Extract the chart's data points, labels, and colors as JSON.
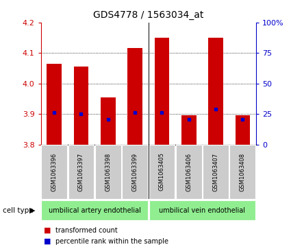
{
  "title": "GDS4778 / 1563034_at",
  "samples": [
    "GSM1063396",
    "GSM1063397",
    "GSM1063398",
    "GSM1063399",
    "GSM1063405",
    "GSM1063406",
    "GSM1063407",
    "GSM1063408"
  ],
  "red_values": [
    4.065,
    4.055,
    3.955,
    4.115,
    4.15,
    3.895,
    4.15,
    3.895
  ],
  "blue_values": [
    3.905,
    3.9,
    3.883,
    3.905,
    3.905,
    3.883,
    3.915,
    3.883
  ],
  "ylim": [
    3.8,
    4.2
  ],
  "yticks": [
    3.8,
    3.9,
    4.0,
    4.1,
    4.2
  ],
  "y2ticks": [
    0,
    25,
    50,
    75,
    100
  ],
  "y2ticklabels": [
    "0",
    "25",
    "50",
    "75",
    "100%"
  ],
  "bar_base": 3.8,
  "groups": [
    {
      "label": "umbilical artery endothelial",
      "start": 0,
      "end": 4,
      "color": "#90EE90"
    },
    {
      "label": "umbilical vein endothelial",
      "start": 4,
      "end": 8,
      "color": "#90EE90"
    }
  ],
  "cell_type_label": "cell type",
  "legend_red_label": "transformed count",
  "legend_blue_label": "percentile rank within the sample",
  "bar_color": "#CC0000",
  "dot_color": "#0000CC",
  "bar_width": 0.55,
  "background_color": "#ffffff",
  "plot_bg_color": "#ffffff",
  "tick_color_left": "#CC0000",
  "tick_color_right": "#0000CC",
  "grid_color": "#000000",
  "title_fontsize": 10,
  "axis_fontsize": 8,
  "sample_fontsize": 6,
  "group_fontsize": 7,
  "legend_fontsize": 7
}
